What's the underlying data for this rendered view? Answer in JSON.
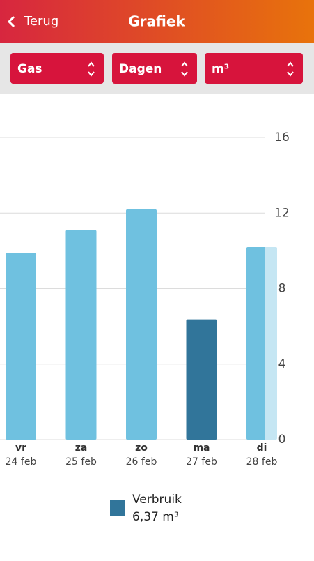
{
  "header": {
    "back": "Terug",
    "title": "Grafiek"
  },
  "filters": [
    "Gas",
    "Dagen",
    "m³"
  ],
  "chart_data": {
    "type": "bar",
    "categories": [
      "vr",
      "za",
      "zo",
      "ma",
      "di"
    ],
    "dates": [
      "24 feb",
      "25 feb",
      "26 feb",
      "27 feb",
      "28 feb"
    ],
    "series": [
      {
        "name": "Verbruik",
        "color": "#31759a",
        "values": [
          9.9,
          11.1,
          12.2,
          6.37,
          10.2
        ],
        "colors": [
          "#6fc1e0",
          "#6fc1e0",
          "#6fc1e0",
          "#31759a",
          "#6fc1e0"
        ]
      }
    ],
    "ylim": [
      0,
      16
    ],
    "yticks": [
      0,
      4,
      8,
      12,
      16
    ],
    "grid": true
  },
  "legend": {
    "value": "6,37 m³"
  }
}
